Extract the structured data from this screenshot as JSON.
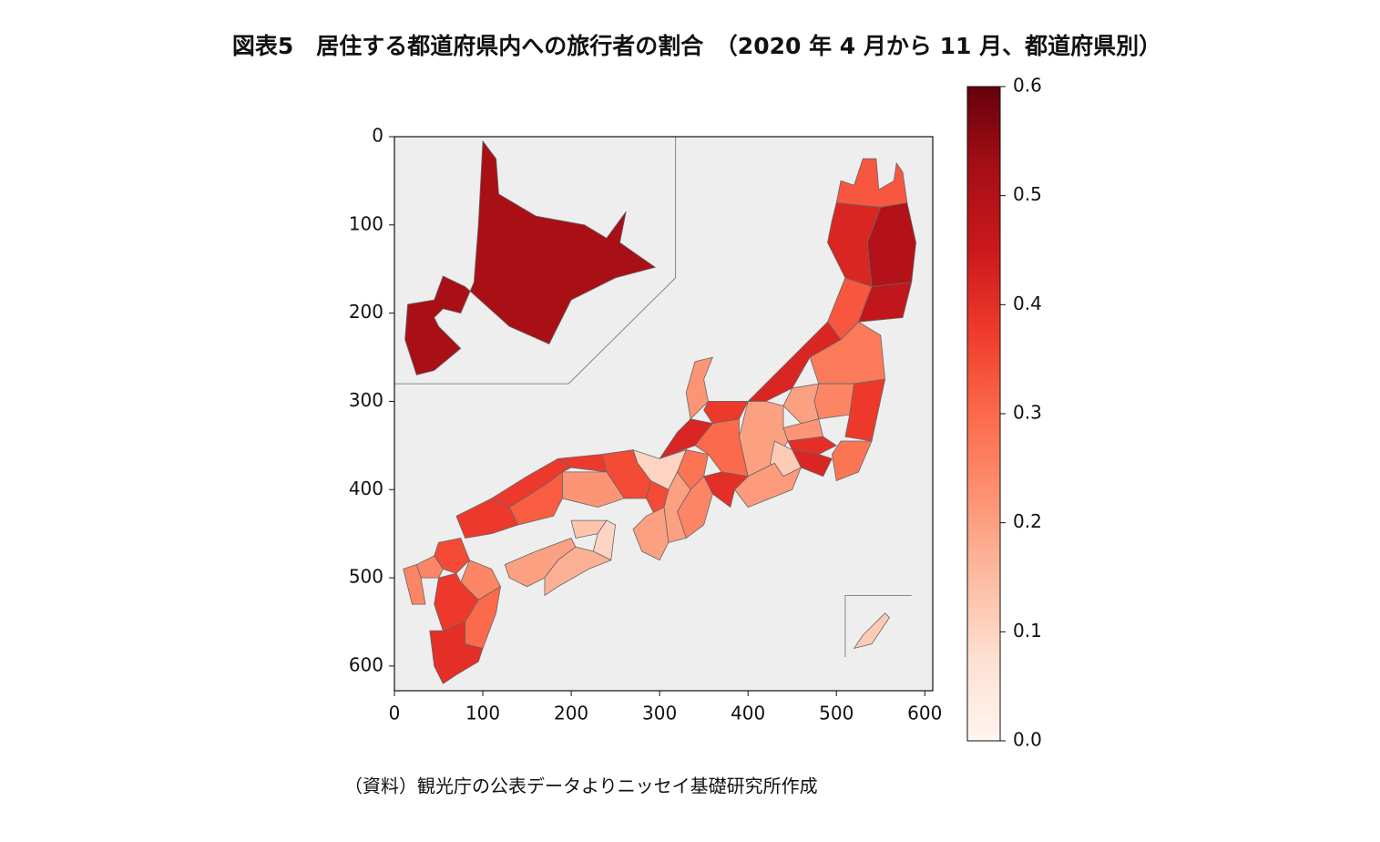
{
  "chart_data": {
    "type": "choropleth",
    "title": "図表5　居住する都道府県内への旅行者の割合　（2020 年 4 月から 11 月、都道府県別）",
    "note": "（資料）観光庁の公表データよりニッセイ基礎研究所作成",
    "values": [
      0.52,
      0.33,
      0.5,
      0.42,
      0.47,
      0.33,
      0.27,
      0.42,
      0.25,
      0.38,
      0.2,
      0.22,
      0.28,
      0.4,
      0.42,
      0.2,
      0.12,
      0.21,
      0.38,
      0.22,
      0.42,
      0.3,
      0.4,
      0.28,
      0.1,
      0.25,
      0.2,
      0.35,
      0.2,
      0.35,
      0.38,
      0.22,
      0.38,
      0.32,
      0.38,
      0.13,
      0.1,
      0.2,
      0.17,
      0.35,
      0.25,
      0.25,
      0.25,
      0.38,
      0.3,
      0.4,
      0.12
    ],
    "xlim": [
      0,
      609
    ],
    "ylim": [
      628,
      0
    ],
    "xticks": [
      0,
      100,
      200,
      300,
      400,
      500,
      600
    ],
    "yticks": [
      0,
      100,
      200,
      300,
      400,
      500,
      600
    ],
    "clim": [
      0,
      0.6
    ],
    "cticks": [
      {
        "value": 0,
        "label": "0.0"
      },
      0.1,
      0.2,
      0.3,
      0.4,
      0.5,
      0.6
    ],
    "colormap": "Reds"
  }
}
